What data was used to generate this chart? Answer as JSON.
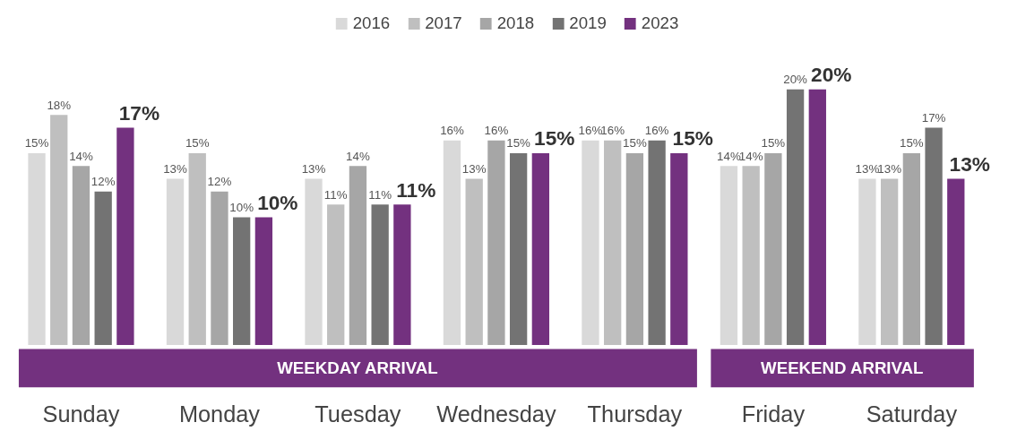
{
  "chart_data": {
    "type": "bar",
    "categories": [
      "Sunday",
      "Monday",
      "Tuesday",
      "Wednesday",
      "Thursday",
      "Friday",
      "Saturday"
    ],
    "series": [
      {
        "name": "2016",
        "color": "#d9d9d9",
        "values": [
          15,
          13,
          13,
          16,
          16,
          14,
          13
        ],
        "value_labels": [
          "15%",
          "13%",
          "13%",
          "16%",
          "16%",
          "14%",
          "13%"
        ]
      },
      {
        "name": "2017",
        "color": "#bfbfbf",
        "values": [
          18,
          15,
          11,
          13,
          16,
          14,
          13
        ],
        "value_labels": [
          "18%",
          "15%",
          "11%",
          "13%",
          "16%",
          "14%",
          "13%"
        ]
      },
      {
        "name": "2018",
        "color": "#a6a6a6",
        "values": [
          14,
          12,
          14,
          16,
          15,
          15,
          15
        ],
        "value_labels": [
          "14%",
          "12%",
          "14%",
          "16%",
          "15%",
          "15%",
          "15%"
        ]
      },
      {
        "name": "2019",
        "color": "#737373",
        "values": [
          12,
          10,
          11,
          15,
          16,
          20,
          17
        ],
        "value_labels": [
          "12%",
          "10%",
          "11%",
          "15%",
          "16%",
          "20%",
          "17%"
        ]
      },
      {
        "name": "2023",
        "color": "#73317f",
        "values": [
          17,
          10,
          11,
          15,
          15,
          20,
          13
        ],
        "value_labels": [
          "17%",
          "10%",
          "11%",
          "15%",
          "15%",
          "20%",
          "13%"
        ]
      }
    ],
    "annotations": [
      "WEEKDAY ARRIVAL",
      "WEEKEND ARRIVAL"
    ],
    "legend": "top",
    "grid": false
  }
}
